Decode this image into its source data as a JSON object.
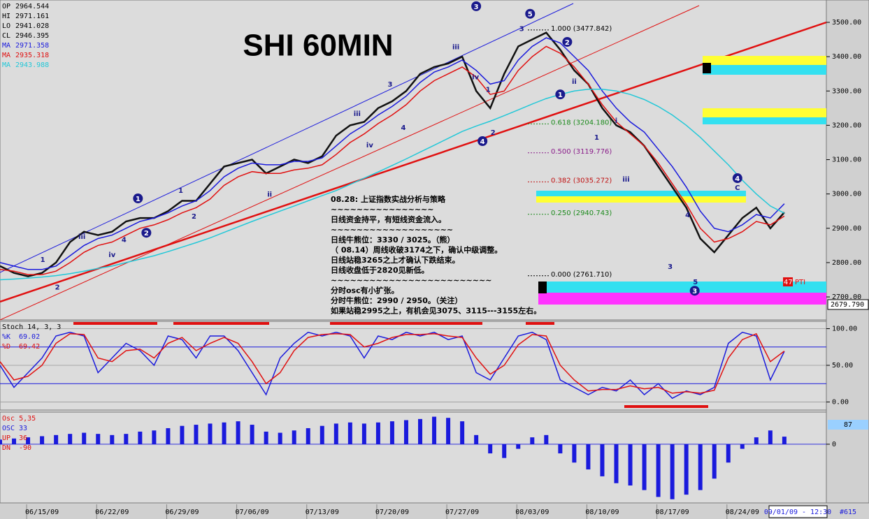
{
  "chart_data": [
    {
      "type": "line",
      "title": "SHI 60MIN",
      "info": [
        {
          "label": "OP",
          "value": 2964.544
        },
        {
          "label": "HI",
          "value": 2971.161
        },
        {
          "label": "LO",
          "value": 2941.028
        }
      ],
      "x": [
        0,
        1,
        2,
        3,
        4,
        5,
        6,
        7,
        8,
        9,
        10,
        11,
        12,
        13,
        14,
        15,
        16,
        17,
        18,
        19,
        20,
        21,
        22,
        23,
        24,
        25,
        26,
        27,
        28,
        29,
        30,
        31,
        32,
        33,
        34,
        35,
        36,
        37,
        38,
        39,
        40,
        41,
        42,
        43,
        44,
        45,
        46,
        47,
        48,
        49,
        50,
        51,
        52,
        53,
        54,
        55,
        56
      ],
      "xlim": [
        0,
        59
      ],
      "ylim": [
        2633,
        3561
      ],
      "yticks": [
        {
          "value": 3500,
          "label": "3500.00"
        },
        {
          "value": 3400,
          "label": "3400.00"
        },
        {
          "value": 3300,
          "label": "3300.00"
        },
        {
          "value": 3200,
          "label": "3200.00"
        },
        {
          "value": 3100,
          "label": "3100.00"
        },
        {
          "value": 3000,
          "label": "3000.00"
        },
        {
          "value": 2900,
          "label": "2900.00"
        },
        {
          "value": 2800,
          "label": "2800.00"
        },
        {
          "value": 2700,
          "label": "2700.00"
        }
      ],
      "series": [
        {
          "name": "CL",
          "color": "#111111",
          "values": [
            2790,
            2770,
            2760,
            2770,
            2800,
            2860,
            2890,
            2880,
            2890,
            2920,
            2930,
            2930,
            2950,
            2980,
            2980,
            3030,
            3080,
            3090,
            3100,
            3060,
            3080,
            3100,
            3090,
            3110,
            3170,
            3200,
            3210,
            3250,
            3270,
            3300,
            3350,
            3370,
            3380,
            3400,
            3300,
            3250,
            3350,
            3430,
            3450,
            3470,
            3420,
            3360,
            3320,
            3250,
            3200,
            3180,
            3140,
            3080,
            3020,
            2960,
            2870,
            2830,
            2880,
            2930,
            2960,
            2900,
            2946.395
          ]
        },
        {
          "name": "MA",
          "color": "#1a1adc",
          "values": [
            2800,
            2790,
            2780,
            2780,
            2790,
            2820,
            2850,
            2870,
            2880,
            2900,
            2920,
            2930,
            2945,
            2965,
            2980,
            3010,
            3050,
            3075,
            3090,
            3085,
            3085,
            3095,
            3095,
            3105,
            3140,
            3175,
            3200,
            3230,
            3255,
            3285,
            3325,
            3355,
            3370,
            3390,
            3360,
            3320,
            3330,
            3390,
            3430,
            3455,
            3440,
            3400,
            3360,
            3300,
            3250,
            3210,
            3180,
            3130,
            3080,
            3020,
            2950,
            2900,
            2890,
            2910,
            2940,
            2930,
            2971.358
          ]
        },
        {
          "name": "MA",
          "color": "#e01010",
          "values": [
            2780,
            2775,
            2765,
            2765,
            2775,
            2800,
            2830,
            2850,
            2860,
            2880,
            2900,
            2910,
            2925,
            2945,
            2960,
            2985,
            3025,
            3050,
            3065,
            3060,
            3060,
            3070,
            3075,
            3085,
            3115,
            3150,
            3175,
            3205,
            3230,
            3260,
            3300,
            3330,
            3350,
            3370,
            3340,
            3290,
            3300,
            3360,
            3400,
            3430,
            3410,
            3370,
            3320,
            3260,
            3210,
            3175,
            3140,
            3090,
            3030,
            2970,
            2900,
            2860,
            2870,
            2890,
            2920,
            2910,
            2935.318
          ]
        },
        {
          "name": "MA",
          "color": "#22c8d8",
          "values": [
            2750,
            2752,
            2755,
            2758,
            2762,
            2768,
            2775,
            2783,
            2790,
            2800,
            2810,
            2820,
            2832,
            2845,
            2858,
            2872,
            2888,
            2904,
            2920,
            2935,
            2950,
            2965,
            2980,
            2995,
            3010,
            3028,
            3046,
            3064,
            3083,
            3102,
            3122,
            3142,
            3162,
            3182,
            3198,
            3212,
            3228,
            3245,
            3262,
            3278,
            3290,
            3300,
            3305,
            3305,
            3300,
            3290,
            3275,
            3255,
            3230,
            3200,
            3165,
            3125,
            3085,
            3040,
            3000,
            2965,
            2943.988
          ]
        }
      ],
      "fib_levels": [
        {
          "label": "1.000 (3477.842)",
          "value": 3477.842,
          "color": "#000000"
        },
        {
          "label": "0.618 (3204.180)",
          "value": 3204.18,
          "color": "#1c8a1c"
        },
        {
          "label": "0.500 (3119.776)",
          "value": 3119.776,
          "color": "#8a1c8a"
        },
        {
          "label": "0.382 (3035.272)",
          "value": 3035.272,
          "color": "#c01010"
        },
        {
          "label": "0.250 (2940.743)",
          "value": 2940.743,
          "color": "#1c8a1c"
        },
        {
          "label": "0.000 (2761.710)",
          "value": 2761.71,
          "color": "#000000"
        }
      ],
      "last_price": "2679.790",
      "waves": [
        {
          "text": "1",
          "x": 9.85,
          "y": 2987,
          "circled": true
        },
        {
          "text": "2",
          "x": 10.45,
          "y": 2887,
          "circled": true
        },
        {
          "text": "3",
          "x": 34,
          "y": 3547,
          "circled": true
        },
        {
          "text": "5",
          "x": 37.85,
          "y": 3525,
          "circled": true
        },
        {
          "text": "4",
          "x": 34.45,
          "y": 3154,
          "circled": true
        },
        {
          "text": "2",
          "x": 40.5,
          "y": 3443,
          "circled": true
        },
        {
          "text": "1",
          "x": 40,
          "y": 3290,
          "circled": true
        },
        {
          "text": "3",
          "x": 49.6,
          "y": 2718,
          "circled": true
        },
        {
          "text": "4",
          "x": 52.65,
          "y": 3046,
          "circled": true
        },
        {
          "text": "1",
          "x": 3.05,
          "y": 2810,
          "circled": false
        },
        {
          "text": "2",
          "x": 4.1,
          "y": 2730,
          "circled": false
        },
        {
          "text": "iii",
          "x": 5.85,
          "y": 2877,
          "circled": false
        },
        {
          "text": "iv",
          "x": 8,
          "y": 2824,
          "circled": false
        },
        {
          "text": "4",
          "x": 8.85,
          "y": 2868,
          "circled": false
        },
        {
          "text": "1",
          "x": 12.9,
          "y": 3012,
          "circled": false
        },
        {
          "text": "2",
          "x": 13.85,
          "y": 2936,
          "circled": false
        },
        {
          "text": "ii",
          "x": 19.25,
          "y": 3000,
          "circled": false
        },
        {
          "text": "iii",
          "x": 25.5,
          "y": 3235,
          "circled": false
        },
        {
          "text": "iv",
          "x": 26.4,
          "y": 3144,
          "circled": false
        },
        {
          "text": "3",
          "x": 27.85,
          "y": 3321,
          "circled": false
        },
        {
          "text": "4",
          "x": 28.8,
          "y": 3195,
          "circled": false
        },
        {
          "text": "iii",
          "x": 32.55,
          "y": 3430,
          "circled": false
        },
        {
          "text": "iv",
          "x": 33.95,
          "y": 3342,
          "circled": false
        },
        {
          "text": "1",
          "x": 34.85,
          "y": 3306,
          "circled": false
        },
        {
          "text": "2",
          "x": 35.2,
          "y": 3180,
          "circled": false
        },
        {
          "text": "3",
          "x": 37.25,
          "y": 3483,
          "circled": false
        },
        {
          "text": "ii",
          "x": 41,
          "y": 3329,
          "circled": false
        },
        {
          "text": "1",
          "x": 42.6,
          "y": 3166,
          "circled": false
        },
        {
          "text": "i",
          "x": 44,
          "y": 3215,
          "circled": false
        },
        {
          "text": "iii",
          "x": 44.7,
          "y": 3044,
          "circled": false
        },
        {
          "text": "3",
          "x": 47.85,
          "y": 2790,
          "circled": false
        },
        {
          "text": "4",
          "x": 49.1,
          "y": 2940,
          "circled": false
        },
        {
          "text": "5",
          "x": 49.65,
          "y": 2745,
          "circled": false
        },
        {
          "text": "C",
          "x": 52.65,
          "y": 3020,
          "circled": false
        }
      ],
      "pti": {
        "count": "47",
        "label": "PTI"
      },
      "note": [
        "08.28: 上证指数实战分析与策略",
        "~~~~~~~~~~~~~~~~",
        "日线资金持平，有短线资金流入。",
        "~~~~~~~~~~~~~~~~~~~",
        "日线牛熊位：3330 / 3025。（熊）",
        "（ 08.14）周线收破3174之下，确认中级调整。",
        "日线站稳3265之上才确认下跌结束。",
        "日线收盘低于2820见新低。",
        "~~~~~~~~~~~~~~~~~~~~~~~~~",
        "分时osc有小扩张。",
        "分时牛熊位：2990 / 2950。（关注）",
        "如果站稳2995之上，有机会见3075、3115---3155左右。"
      ]
    },
    {
      "type": "line",
      "title": "Stoch 14, 3, 3",
      "x": [
        0,
        1,
        2,
        3,
        4,
        5,
        6,
        7,
        8,
        9,
        10,
        11,
        12,
        13,
        14,
        15,
        16,
        17,
        18,
        19,
        20,
        21,
        22,
        23,
        24,
        25,
        26,
        27,
        28,
        29,
        30,
        31,
        32,
        33,
        34,
        35,
        36,
        37,
        38,
        39,
        40,
        41,
        42,
        43,
        44,
        45,
        46,
        47,
        48,
        49,
        50,
        51,
        52,
        53,
        54,
        55,
        56
      ],
      "xlim": [
        0,
        59
      ],
      "ylim": [
        -11,
        110
      ],
      "yticks": [
        {
          "value": 100,
          "label": "100.00"
        },
        {
          "value": 50,
          "label": "50.00"
        },
        {
          "value": 0,
          "label": "0.00"
        }
      ],
      "levels": [
        75,
        25
      ],
      "series": [
        {
          "name": "%K",
          "color": "#1a1adc",
          "values": [
            50,
            20,
            40,
            60,
            90,
            95,
            90,
            40,
            60,
            80,
            70,
            50,
            90,
            85,
            60,
            90,
            90,
            70,
            40,
            10,
            60,
            80,
            95,
            90,
            95,
            90,
            60,
            90,
            85,
            95,
            90,
            95,
            85,
            90,
            40,
            30,
            60,
            90,
            95,
            85,
            30,
            20,
            10,
            20,
            15,
            30,
            10,
            25,
            5,
            15,
            10,
            20,
            80,
            95,
            90,
            30,
            69.02
          ]
        },
        {
          "name": "%D",
          "color": "#e01010",
          "values": [
            55,
            30,
            35,
            50,
            80,
            93,
            92,
            60,
            55,
            70,
            72,
            60,
            80,
            88,
            70,
            80,
            88,
            80,
            55,
            25,
            40,
            70,
            88,
            92,
            93,
            92,
            75,
            80,
            88,
            92,
            92,
            93,
            90,
            88,
            60,
            38,
            50,
            78,
            92,
            90,
            50,
            30,
            15,
            17,
            17,
            22,
            18,
            20,
            12,
            14,
            12,
            16,
            60,
            85,
            93,
            55,
            69.42
          ]
        }
      ]
    },
    {
      "type": "bar",
      "title": "Osc 5,35",
      "info": [
        {
          "label": "UP",
          "value": 36,
          "color": "#e01010"
        },
        {
          "label": "DN",
          "value": -90,
          "color": "#e01010"
        }
      ],
      "x": [
        0,
        1,
        2,
        3,
        4,
        5,
        6,
        7,
        8,
        9,
        10,
        11,
        12,
        13,
        14,
        15,
        16,
        17,
        18,
        19,
        20,
        21,
        22,
        23,
        24,
        25,
        26,
        27,
        28,
        29,
        30,
        31,
        32,
        33,
        34,
        35,
        36,
        37,
        38,
        39,
        40,
        41,
        42,
        43,
        44,
        45,
        46,
        47,
        48,
        49,
        50,
        51,
        52,
        53,
        54,
        55,
        56
      ],
      "xlim": [
        0,
        59
      ],
      "ylim": [
        -250,
        140
      ],
      "yticks": [
        0
      ],
      "marker_label": "87",
      "xticks": [
        {
          "value": 3,
          "label": "06/15/09"
        },
        {
          "value": 8,
          "label": "06/22/09"
        },
        {
          "value": 13,
          "label": "06/29/09"
        },
        {
          "value": 18,
          "label": "07/06/09"
        },
        {
          "value": 23,
          "label": "07/13/09"
        },
        {
          "value": 28,
          "label": "07/20/09"
        },
        {
          "value": 33,
          "label": "07/27/09"
        },
        {
          "value": 38,
          "label": "08/03/09"
        },
        {
          "value": 43,
          "label": "08/10/09"
        },
        {
          "value": 48,
          "label": "08/17/09"
        },
        {
          "value": 53,
          "label": "08/24/09"
        }
      ],
      "timestamp": "09/01/09 - 12:30",
      "bar_count": "#615",
      "series": [
        {
          "name": "OSC",
          "color": "#1a1adc",
          "values": [
            20,
            25,
            30,
            35,
            40,
            45,
            50,
            45,
            40,
            45,
            55,
            60,
            70,
            80,
            85,
            90,
            95,
            100,
            85,
            55,
            50,
            60,
            70,
            80,
            90,
            95,
            90,
            95,
            100,
            105,
            110,
            120,
            115,
            100,
            40,
            -40,
            -60,
            -20,
            30,
            40,
            -40,
            -80,
            -110,
            -140,
            -170,
            -180,
            -200,
            -230,
            -240,
            -220,
            -200,
            -150,
            -80,
            -20,
            30,
            60,
            33
          ]
        }
      ]
    }
  ]
}
